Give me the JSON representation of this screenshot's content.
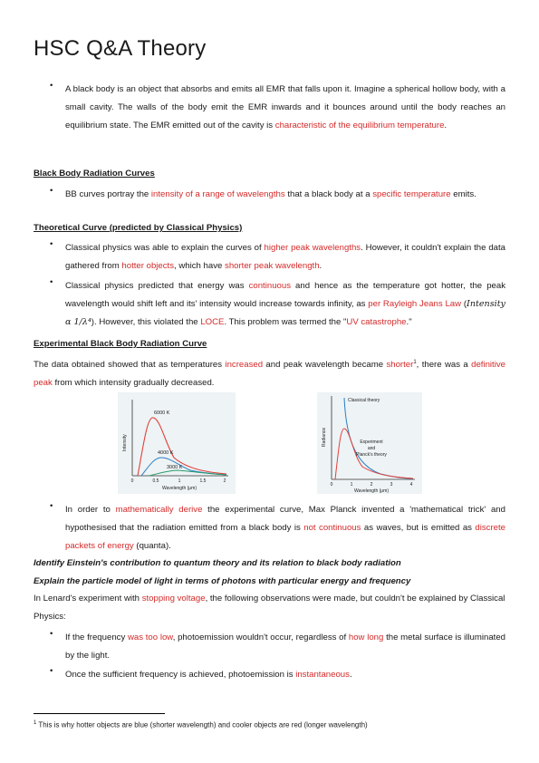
{
  "title": "HSC Q&A Theory",
  "intro": {
    "text_a": "A black body is an object that absorbs and emits all EMR that falls upon it. Imagine a spherical hollow body, with a small cavity. The walls of the body emit the EMR inwards and it bounces around until the body reaches an equilibrium state. The EMR emitted out of the cavity is ",
    "text_red": "characteristic of the equilibrium temperature",
    "text_b": "."
  },
  "bb_heading": "Black Body Radiation Curves",
  "bb_bullet": {
    "a": "BB curves portray the ",
    "r1": "intensity of a range of wavelengths",
    "b": " that a black body at a ",
    "r2": "specific temperature",
    "c": " emits."
  },
  "theory_heading": "Theoretical Curve (predicted by Classical Physics)",
  "theory_b1": {
    "a": "Classical physics was able to explain the curves of ",
    "r1": "higher peak wavelengths",
    "b": ". However, it couldn't explain the data gathered from ",
    "r2": "hotter objects",
    "c": ", which have ",
    "r3": "shorter peak wavelength",
    "d": "."
  },
  "theory_b2": {
    "a": "Classical physics predicted that energy was ",
    "r1": "continuous",
    "b": " and hence as the temperature got hotter, the peak wavelength would shift left and its' intensity would increase towards infinity, as ",
    "r2": "per Rayleigh Jeans Law",
    "math_open": " (",
    "math": "Intensity α 1/λ⁴",
    "c": "). However, this violated the ",
    "r3": "LOCE",
    "d": ". This problem was termed the \"",
    "r4": "UV catastrophe",
    "e": ".\""
  },
  "exp_heading": "Experimental Black Body Radiation Curve",
  "exp_para": {
    "a": "The data obtained showed that as temperatures ",
    "r1": "increased",
    "b": " and peak wavelength became ",
    "r2": "shorter",
    "fn": "1",
    "c": ", there was a ",
    "r3": "definitive peak",
    "d": " from which intensity gradually decreased."
  },
  "fig1": {
    "ylabel": "Intensity",
    "xlabel": "Wavelength (μm)",
    "ticks": [
      "0",
      "0.5",
      "1",
      "1.5",
      "2"
    ],
    "labels": [
      "6000 K",
      "4000 K",
      "3000 K"
    ]
  },
  "fig2": {
    "ylabel": "Radiance",
    "xlabel": "Wavelength (μm)",
    "ticks": [
      "0",
      "1",
      "2",
      "3",
      "4"
    ],
    "label_classical": "Classical theory",
    "label_exp1": "Experiment",
    "label_exp2": "and",
    "label_exp3": "Planck's theory"
  },
  "planck_bullet": {
    "a": "In order to ",
    "r1": "mathematically derive",
    "b": " the experimental curve, Max Planck invented a 'mathematical trick' and hypothesised that the radiation emitted from a black body is ",
    "r2": "not continuous",
    "c": " as waves, but is emitted as ",
    "r3": "discrete packets of energy",
    "d": " (quanta)."
  },
  "heading_einstein": "Identify Einstein's contribution to quantum theory and its relation to black body radiation",
  "heading_particle": "Explain the particle model of light in terms of photons with particular energy and frequency",
  "lenard_para": {
    "a": "In Lenard's experiment with ",
    "r1": "stopping voltage",
    "b": ", the following observations were made, but couldn't be explained by Classical Physics:"
  },
  "lenard_b1": {
    "a": "If the frequency ",
    "r1": "was too low",
    "b": ", photoemission wouldn't occur, regardless of ",
    "r2": "how long",
    "c": " the metal surface is illuminated by the light."
  },
  "lenard_b2": {
    "a": "Once the sufficient frequency is achieved, photoemission is ",
    "r1": "instantaneous",
    "b": "."
  },
  "footnote": {
    "num": "1",
    "text": " This is why hotter objects are blue (shorter wavelength) and cooler objects are red (longer wavelength)"
  },
  "bullet_glyph": "•",
  "colors": {
    "accent_red": "#d42a2a",
    "text": "#1a1a1a",
    "curve_red": "#e0413a",
    "curve_blue": "#2a7fc0",
    "curve_green": "#2a9a6a"
  }
}
